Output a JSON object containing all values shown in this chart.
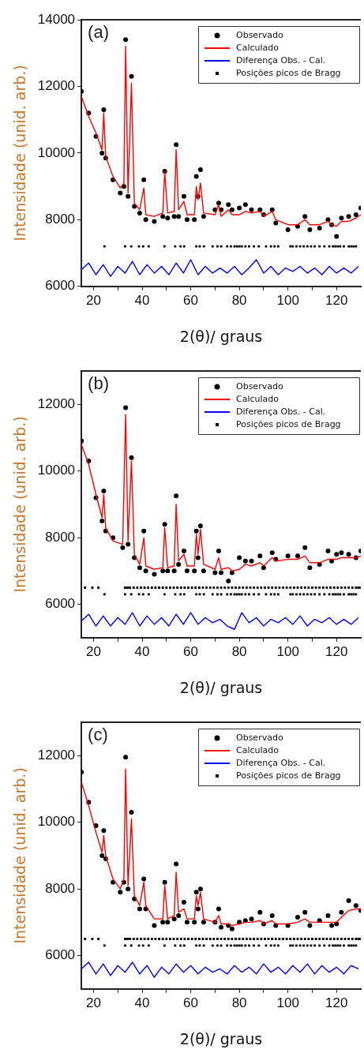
{
  "chart_data": [
    {
      "type": "scatter",
      "xlabel": "2(θ)/ graus",
      "ylabel": "Intensidade (unid. arb.)",
      "annotations": [
        "(a)"
      ],
      "legend": "top right",
      "xlim": [
        15,
        130
      ],
      "ylim": [
        6000,
        14000
      ],
      "xticks": [
        20,
        {
          "value": 30,
          "label": null
        },
        40,
        {
          "value": 50,
          "label": null
        },
        60,
        {
          "value": 70,
          "label": null
        },
        80,
        {
          "value": 90,
          "label": null
        },
        100,
        {
          "value": 110,
          "label": null
        },
        120
      ],
      "yticks": [
        6000,
        8000,
        10000,
        12000,
        14000
      ],
      "series": [
        {
          "name": "Observado",
          "marker": "circle",
          "color": "#000000",
          "x": [
            15,
            18,
            21,
            23.5,
            24.2,
            25,
            28,
            31,
            32.5,
            33.2,
            34.2,
            35.6,
            36.8,
            39,
            40.7,
            41.5,
            45,
            48.5,
            49.3,
            50.5,
            53.2,
            54,
            55,
            57.2,
            58.5,
            61.5,
            62.3,
            63,
            64,
            65.3,
            70,
            71.5,
            72.5,
            75.5,
            77,
            80,
            82.5,
            85,
            88.5,
            90,
            93.5,
            95,
            100,
            104,
            107,
            109,
            113,
            116.5,
            118,
            120,
            122,
            125,
            128,
            130
          ],
          "values": [
            11850,
            11200,
            10500,
            10000,
            11300,
            9850,
            9200,
            8800,
            9000,
            13400,
            8700,
            12300,
            8400,
            8200,
            9200,
            8000,
            7950,
            8100,
            9450,
            8050,
            8100,
            10250,
            8100,
            8700,
            8000,
            8000,
            9300,
            8700,
            9500,
            8100,
            8300,
            8500,
            8300,
            8450,
            8300,
            8350,
            8450,
            8300,
            8300,
            8150,
            8300,
            7900,
            7700,
            7800,
            8100,
            7700,
            7750,
            8000,
            7850,
            7500,
            8050,
            8100,
            8150,
            8350
          ]
        },
        {
          "name": "Calculado",
          "type": "line",
          "marker": "none",
          "color": "#ff0000",
          "x": [
            15,
            18,
            21,
            23.5,
            24.2,
            25,
            28,
            31,
            32.5,
            33.2,
            34.2,
            35.6,
            36.8,
            39,
            40.7,
            41.5,
            45,
            48.5,
            49.3,
            50.5,
            53.2,
            54,
            55,
            57.2,
            58.5,
            61.5,
            62.3,
            63,
            64,
            65.3,
            70,
            71.5,
            72.5,
            75.5,
            77,
            80,
            82.5,
            85,
            88.5,
            90,
            93.5,
            95,
            100,
            104,
            107,
            109,
            113,
            116.5,
            118,
            120,
            122,
            125,
            128,
            130
          ],
          "values": [
            11700,
            11100,
            10600,
            10100,
            11200,
            9900,
            9300,
            8950,
            9100,
            13200,
            8800,
            12100,
            8500,
            8300,
            8950,
            8150,
            8100,
            8200,
            9450,
            8200,
            8250,
            10100,
            8300,
            8550,
            8150,
            8150,
            9000,
            8600,
            9100,
            8200,
            8150,
            8450,
            8100,
            8300,
            8150,
            8150,
            8250,
            8200,
            8250,
            8100,
            8250,
            8000,
            7850,
            7850,
            8000,
            7850,
            7850,
            7950,
            7850,
            7800,
            7950,
            7950,
            8050,
            8150
          ]
        },
        {
          "name": "Diferença Obs. - Cal.",
          "type": "line",
          "marker": "none",
          "color": "#0000ff",
          "x": [
            15,
            18,
            21,
            24,
            27,
            30,
            33,
            36,
            39,
            42,
            45,
            48,
            51,
            54,
            57,
            60,
            63,
            66,
            69,
            72,
            75,
            78,
            81,
            84,
            87,
            90,
            93,
            96,
            99,
            102,
            105,
            108,
            111,
            114,
            117,
            120,
            123,
            126,
            129
          ],
          "values": [
            6500,
            6700,
            6350,
            6650,
            6300,
            6600,
            6400,
            6750,
            6350,
            6650,
            6400,
            6600,
            6350,
            6700,
            6400,
            6800,
            6350,
            6600,
            6400,
            6550,
            6400,
            6600,
            6350,
            6550,
            6800,
            6400,
            6600,
            6350,
            6550,
            6450,
            6600,
            6400,
            6550,
            6350,
            6600,
            6400,
            6550,
            6400,
            6600
          ]
        },
        {
          "name": "Posições picos de Bragg",
          "color": "#000000",
          "x": [
            24.5,
            33,
            35.5,
            38.7,
            40.4,
            42.7,
            49.2,
            53.6,
            55.8,
            57.3,
            62.3,
            63.7,
            65.4,
            69,
            71,
            72.5,
            75,
            76.5,
            78,
            79,
            80,
            81,
            82.5,
            84,
            86,
            88,
            91,
            93,
            94.5,
            96,
            101,
            102,
            103.5,
            105,
            106.5,
            108,
            109.5,
            111,
            113,
            115,
            117,
            118.5,
            119.5,
            120.5,
            121.5,
            123,
            125,
            126,
            127,
            128
          ],
          "values": [
            7200,
            7200,
            7200,
            7200,
            7200,
            7200,
            7200,
            7200,
            7200,
            7200,
            7200,
            7200,
            7200,
            7200,
            7200,
            7200,
            7200,
            7200,
            7200,
            7200,
            7200,
            7200,
            7200,
            7200,
            7200,
            7200,
            7200,
            7200,
            7200,
            7200,
            7200,
            7200,
            7200,
            7200,
            7200,
            7200,
            7200,
            7200,
            7200,
            7200,
            7200,
            7200,
            7200,
            7200,
            7200,
            7200,
            7200,
            7200,
            7200,
            7200
          ]
        }
      ]
    },
    {
      "type": "scatter",
      "xlabel": "2(θ)/ graus",
      "ylabel": "Intensidade (unid. arb.)",
      "annotations": [
        "(b)"
      ],
      "legend": "top right",
      "xlim": [
        15,
        130
      ],
      "ylim": [
        5000,
        13000
      ],
      "xticks": [
        20,
        {
          "value": 30,
          "label": null
        },
        40,
        {
          "value": 50,
          "label": null
        },
        60,
        {
          "value": 70,
          "label": null
        },
        80,
        {
          "value": 90,
          "label": null
        },
        100,
        {
          "value": 110,
          "label": null
        },
        120
      ],
      "yticks": [
        6000,
        8000,
        10000,
        12000
      ],
      "series": [
        {
          "name": "Observado",
          "marker": "circle",
          "color": "#000000",
          "x": [
            15,
            18,
            21,
            23.5,
            24.2,
            25,
            28,
            32,
            33.2,
            34.2,
            35.6,
            36.8,
            39,
            40.7,
            41.5,
            45,
            48.5,
            49.3,
            50.5,
            53.2,
            54,
            55,
            57.2,
            58.5,
            61.5,
            62.3,
            63,
            64,
            65.3,
            70,
            71.5,
            72.5,
            75.5,
            77,
            80,
            82.5,
            85,
            88.5,
            90,
            93.5,
            95,
            100,
            104,
            107,
            109,
            113,
            116.5,
            118,
            120,
            122,
            125,
            128,
            130
          ],
          "values": [
            10900,
            10300,
            9200,
            8500,
            9400,
            8200,
            8000,
            7700,
            11900,
            7800,
            10400,
            7400,
            7100,
            8200,
            7000,
            6900,
            7000,
            8400,
            7000,
            7000,
            9250,
            7200,
            7600,
            7000,
            7000,
            8200,
            7400,
            8350,
            7000,
            6950,
            7600,
            6950,
            6700,
            6950,
            7400,
            7300,
            7300,
            7450,
            7100,
            7550,
            7350,
            7450,
            7450,
            7700,
            7100,
            7200,
            7600,
            7300,
            7500,
            7550,
            7500,
            7400,
            7600
          ]
        },
        {
          "name": "Calculado",
          "type": "line",
          "marker": "none",
          "color": "#ff0000",
          "x": [
            15,
            18,
            21,
            23.5,
            24.2,
            25,
            28,
            32,
            33.2,
            34.2,
            35.6,
            36.8,
            39,
            40.7,
            41.5,
            45,
            48.5,
            49.3,
            50.5,
            53.2,
            54,
            55,
            57.2,
            58.5,
            61.5,
            62.3,
            63,
            64,
            65.3,
            70,
            71.5,
            72.5,
            75.5,
            77,
            80,
            82.5,
            85,
            88.5,
            90,
            93.5,
            95,
            100,
            104,
            107,
            109,
            113,
            116.5,
            118,
            120,
            122,
            125,
            128,
            130
          ],
          "values": [
            10800,
            10200,
            9300,
            8600,
            9300,
            8300,
            7900,
            7800,
            11700,
            7900,
            10300,
            7500,
            7200,
            8000,
            7150,
            7050,
            7100,
            8300,
            7100,
            7150,
            9000,
            7300,
            7500,
            7150,
            7150,
            8100,
            7500,
            8250,
            7200,
            7050,
            7400,
            7050,
            7100,
            7000,
            7050,
            7200,
            7150,
            7250,
            7150,
            7400,
            7300,
            7350,
            7350,
            7450,
            7250,
            7250,
            7350,
            7350,
            7350,
            7400,
            7400,
            7400,
            7450
          ]
        },
        {
          "name": "Diferença Obs. - Cal.",
          "type": "line",
          "marker": "none",
          "color": "#0000ff",
          "x": [
            15,
            18,
            21,
            24,
            27,
            30,
            33,
            36,
            39,
            42,
            45,
            48,
            51,
            54,
            57,
            60,
            63,
            66,
            69,
            72,
            75,
            78,
            81,
            84,
            87,
            90,
            93,
            96,
            99,
            102,
            105,
            108,
            111,
            114,
            117,
            120,
            123,
            126,
            129
          ],
          "values": [
            5500,
            5700,
            5350,
            5650,
            5350,
            5600,
            5400,
            5750,
            5350,
            5650,
            5400,
            5600,
            5350,
            5700,
            5400,
            5750,
            5400,
            5600,
            5450,
            5550,
            5350,
            5250,
            5750,
            5450,
            5600,
            5350,
            5550,
            5450,
            5600,
            5400,
            5650,
            5350,
            5550,
            5450,
            5600,
            5400,
            5550,
            5400,
            5600
          ]
        },
        {
          "name": "Posições picos de Bragg",
          "color": "#000000",
          "x": [
            16.5,
            19.5,
            22,
            33,
            34,
            35,
            36.5,
            38,
            39.5,
            41,
            42.5,
            44,
            45.5,
            47,
            48.5,
            50,
            51.5,
            53,
            54.5,
            56,
            57.5,
            59,
            60.5,
            62,
            63.5,
            65,
            66.5,
            68,
            69.5,
            71,
            72.5,
            74,
            75.5,
            77,
            78.5,
            80,
            81.5,
            83,
            84.5,
            86,
            87.5,
            89,
            90.5,
            92,
            93.5,
            95,
            96.5,
            98,
            99.5,
            101,
            102.5,
            104,
            105.5,
            107,
            108.5,
            110,
            111.5,
            113,
            114.5,
            116,
            117.5,
            119,
            120.5,
            122,
            123.5,
            125,
            126.5,
            128,
            129,
            129.5
          ],
          "values": [
            6500,
            6500,
            6500,
            6500,
            6500,
            6500,
            6500,
            6500,
            6500,
            6500,
            6500,
            6500,
            6500,
            6500,
            6500,
            6500,
            6500,
            6500,
            6500,
            6500,
            6500,
            6500,
            6500,
            6500,
            6500,
            6500,
            6500,
            6500,
            6500,
            6500,
            6500,
            6500,
            6500,
            6500,
            6500,
            6500,
            6500,
            6500,
            6500,
            6500,
            6500,
            6500,
            6500,
            6500,
            6500,
            6500,
            6500,
            6500,
            6500,
            6500,
            6500,
            6500,
            6500,
            6500,
            6500,
            6500,
            6500,
            6500,
            6500,
            6500,
            6500,
            6500,
            6500,
            6500,
            6500,
            6500,
            6500,
            6500,
            6500,
            6500
          ]
        },
        {
          "color": "#000000",
          "x": [
            24.5,
            33,
            35.5,
            38.7,
            40.4,
            42.7,
            49.2,
            53.6,
            55.8,
            57.3,
            62.3,
            63.7,
            65.4,
            69,
            71,
            72.5,
            75,
            76.5,
            78,
            79,
            80,
            81,
            82.5,
            84,
            86,
            88,
            91,
            93,
            94.5,
            96,
            101,
            102,
            103.5,
            105,
            106.5,
            108,
            109.5,
            111,
            113,
            115,
            117,
            118.5,
            119.5,
            120.5,
            121.5,
            123,
            125,
            126,
            127,
            128
          ],
          "values": [
            6300,
            6300,
            6300,
            6300,
            6300,
            6300,
            6300,
            6300,
            6300,
            6300,
            6300,
            6300,
            6300,
            6300,
            6300,
            6300,
            6300,
            6300,
            6300,
            6300,
            6300,
            6300,
            6300,
            6300,
            6300,
            6300,
            6300,
            6300,
            6300,
            6300,
            6300,
            6300,
            6300,
            6300,
            6300,
            6300,
            6300,
            6300,
            6300,
            6300,
            6300,
            6300,
            6300,
            6300,
            6300,
            6300,
            6300,
            6300,
            6300,
            6300
          ]
        }
      ]
    },
    {
      "type": "scatter",
      "xlabel": "2(θ)/ graus",
      "ylabel": "Intensidade (unid. arb.)",
      "annotations": [
        "(c)"
      ],
      "legend": "top right",
      "xlim": [
        15,
        130
      ],
      "ylim": [
        5000,
        13000
      ],
      "xticks": [
        20,
        {
          "value": 30,
          "label": null
        },
        40,
        {
          "value": 50,
          "label": null
        },
        60,
        {
          "value": 70,
          "label": null
        },
        80,
        {
          "value": 90,
          "label": null
        },
        100,
        {
          "value": 110,
          "label": null
        },
        120
      ],
      "yticks": [
        6000,
        8000,
        10000,
        12000
      ],
      "series": [
        {
          "name": "Observado",
          "marker": "circle",
          "color": "#000000",
          "x": [
            15,
            18,
            21,
            23.5,
            24.2,
            25,
            28,
            31,
            32.5,
            33.2,
            34.2,
            35.6,
            36.8,
            39,
            40.7,
            41.5,
            45,
            48.5,
            49.3,
            50.5,
            53.2,
            54,
            55,
            57.2,
            58.5,
            61.5,
            62.3,
            63,
            64,
            65.3,
            70,
            71.5,
            72.5,
            75.5,
            77,
            80,
            82.5,
            85,
            88.5,
            90,
            93.5,
            95,
            100,
            104,
            107,
            109,
            113,
            116.5,
            118,
            120,
            122,
            125,
            128,
            130
          ],
          "values": [
            11500,
            10600,
            9900,
            9000,
            9750,
            8900,
            8200,
            7900,
            8200,
            11950,
            8000,
            10300,
            7700,
            7400,
            8300,
            7400,
            6900,
            7000,
            8200,
            7000,
            7100,
            8750,
            7200,
            7600,
            7000,
            7000,
            7900,
            7400,
            8000,
            7000,
            7000,
            7400,
            6850,
            6900,
            6800,
            7000,
            7050,
            7100,
            7300,
            6950,
            7200,
            6900,
            6900,
            7150,
            7300,
            6900,
            7050,
            7200,
            6900,
            6950,
            7300,
            7650,
            7500,
            7350
          ]
        },
        {
          "name": "Calculado",
          "type": "line",
          "marker": "none",
          "color": "#ff0000",
          "x": [
            15,
            18,
            21,
            23.5,
            24.2,
            25,
            28,
            31,
            32.5,
            33.2,
            34.2,
            35.6,
            36.8,
            39,
            40.7,
            41.5,
            45,
            48.5,
            49.3,
            50.5,
            53.2,
            54,
            55,
            57.2,
            58.5,
            61.5,
            62.3,
            63,
            64,
            65.3,
            70,
            71.5,
            72.5,
            75.5,
            77,
            80,
            82.5,
            85,
            88.5,
            90,
            93.5,
            95,
            100,
            104,
            107,
            109,
            113,
            116.5,
            118,
            120,
            122,
            125,
            128,
            130
          ],
          "values": [
            11200,
            10500,
            9700,
            9100,
            9600,
            9000,
            8300,
            8000,
            8300,
            11600,
            8100,
            10100,
            7800,
            7500,
            8200,
            7500,
            7100,
            7100,
            8100,
            7100,
            7200,
            8500,
            7300,
            7400,
            7100,
            7100,
            7800,
            7500,
            7900,
            7100,
            7000,
            7200,
            6950,
            6950,
            6900,
            6950,
            7000,
            7000,
            7050,
            6950,
            7050,
            6950,
            6950,
            7000,
            7100,
            7000,
            7000,
            7000,
            7000,
            7000,
            7150,
            7350,
            7400,
            7400
          ]
        },
        {
          "name": "Diferença Obs. - Cal.",
          "type": "line",
          "marker": "none",
          "color": "#0000ff",
          "x": [
            15,
            18,
            21,
            24,
            27,
            30,
            33,
            36,
            39,
            42,
            45,
            48,
            51,
            54,
            57,
            60,
            63,
            66,
            69,
            72,
            75,
            78,
            81,
            84,
            87,
            90,
            93,
            96,
            99,
            102,
            105,
            108,
            111,
            114,
            117,
            120,
            123,
            126,
            129
          ],
          "values": [
            5600,
            5800,
            5450,
            5750,
            5400,
            5700,
            5500,
            5800,
            5450,
            5700,
            5350,
            5650,
            5450,
            5750,
            5500,
            5700,
            5450,
            5650,
            5500,
            5600,
            5450,
            5700,
            5500,
            5650,
            5450,
            5750,
            5500,
            5650,
            5450,
            5700,
            5500,
            5750,
            5450,
            5700,
            5500,
            5650,
            5450,
            5700,
            5600
          ]
        },
        {
          "name": "Posições picos de Bragg",
          "color": "#000000",
          "x": [
            16.5,
            19.5,
            22,
            33,
            34,
            35,
            36.5,
            38,
            39.5,
            41,
            42.5,
            44,
            45.5,
            47,
            48.5,
            50,
            51.5,
            53,
            54.5,
            56,
            57.5,
            59,
            60.5,
            62,
            63.5,
            65,
            66.5,
            68,
            69.5,
            71,
            72.5,
            74,
            75.5,
            77,
            78.5,
            80,
            81.5,
            83,
            84.5,
            86,
            87.5,
            89,
            90.5,
            92,
            93.5,
            95,
            96.5,
            98,
            99.5,
            101,
            102.5,
            104,
            105.5,
            107,
            108.5,
            110,
            111.5,
            113,
            114.5,
            116,
            117.5,
            119,
            120.5,
            122,
            123.5,
            125,
            126.5,
            128,
            129,
            129.5
          ],
          "values": [
            6500,
            6500,
            6500,
            6500,
            6500,
            6500,
            6500,
            6500,
            6500,
            6500,
            6500,
            6500,
            6500,
            6500,
            6500,
            6500,
            6500,
            6500,
            6500,
            6500,
            6500,
            6500,
            6500,
            6500,
            6500,
            6500,
            6500,
            6500,
            6500,
            6500,
            6500,
            6500,
            6500,
            6500,
            6500,
            6500,
            6500,
            6500,
            6500,
            6500,
            6500,
            6500,
            6500,
            6500,
            6500,
            6500,
            6500,
            6500,
            6500,
            6500,
            6500,
            6500,
            6500,
            6500,
            6500,
            6500,
            6500,
            6500,
            6500,
            6500,
            6500,
            6500,
            6500,
            6500,
            6500,
            6500,
            6500,
            6500,
            6500,
            6500
          ]
        },
        {
          "color": "#000000",
          "x": [
            24.5,
            33,
            35.5,
            38.7,
            40.4,
            42.7,
            49.2,
            53.6,
            55.8,
            57.3,
            62.3,
            63.7,
            65.4,
            69,
            71,
            72.5,
            75,
            76.5,
            78,
            79,
            80,
            81,
            82.5,
            84,
            86,
            88,
            91,
            93,
            94.5,
            96,
            101,
            102,
            103.5,
            105,
            106.5,
            108,
            109.5,
            111,
            113,
            115,
            117,
            118.5,
            119.5,
            120.5,
            121.5,
            123,
            125,
            126,
            127,
            128
          ],
          "values": [
            6300,
            6300,
            6300,
            6300,
            6300,
            6300,
            6300,
            6300,
            6300,
            6300,
            6300,
            6300,
            6300,
            6300,
            6300,
            6300,
            6300,
            6300,
            6300,
            6300,
            6300,
            6300,
            6300,
            6300,
            6300,
            6300,
            6300,
            6300,
            6300,
            6300,
            6300,
            6300,
            6300,
            6300,
            6300,
            6300,
            6300,
            6300,
            6300,
            6300,
            6300,
            6300,
            6300,
            6300,
            6300,
            6300,
            6300,
            6300,
            6300,
            6300
          ]
        }
      ]
    }
  ]
}
